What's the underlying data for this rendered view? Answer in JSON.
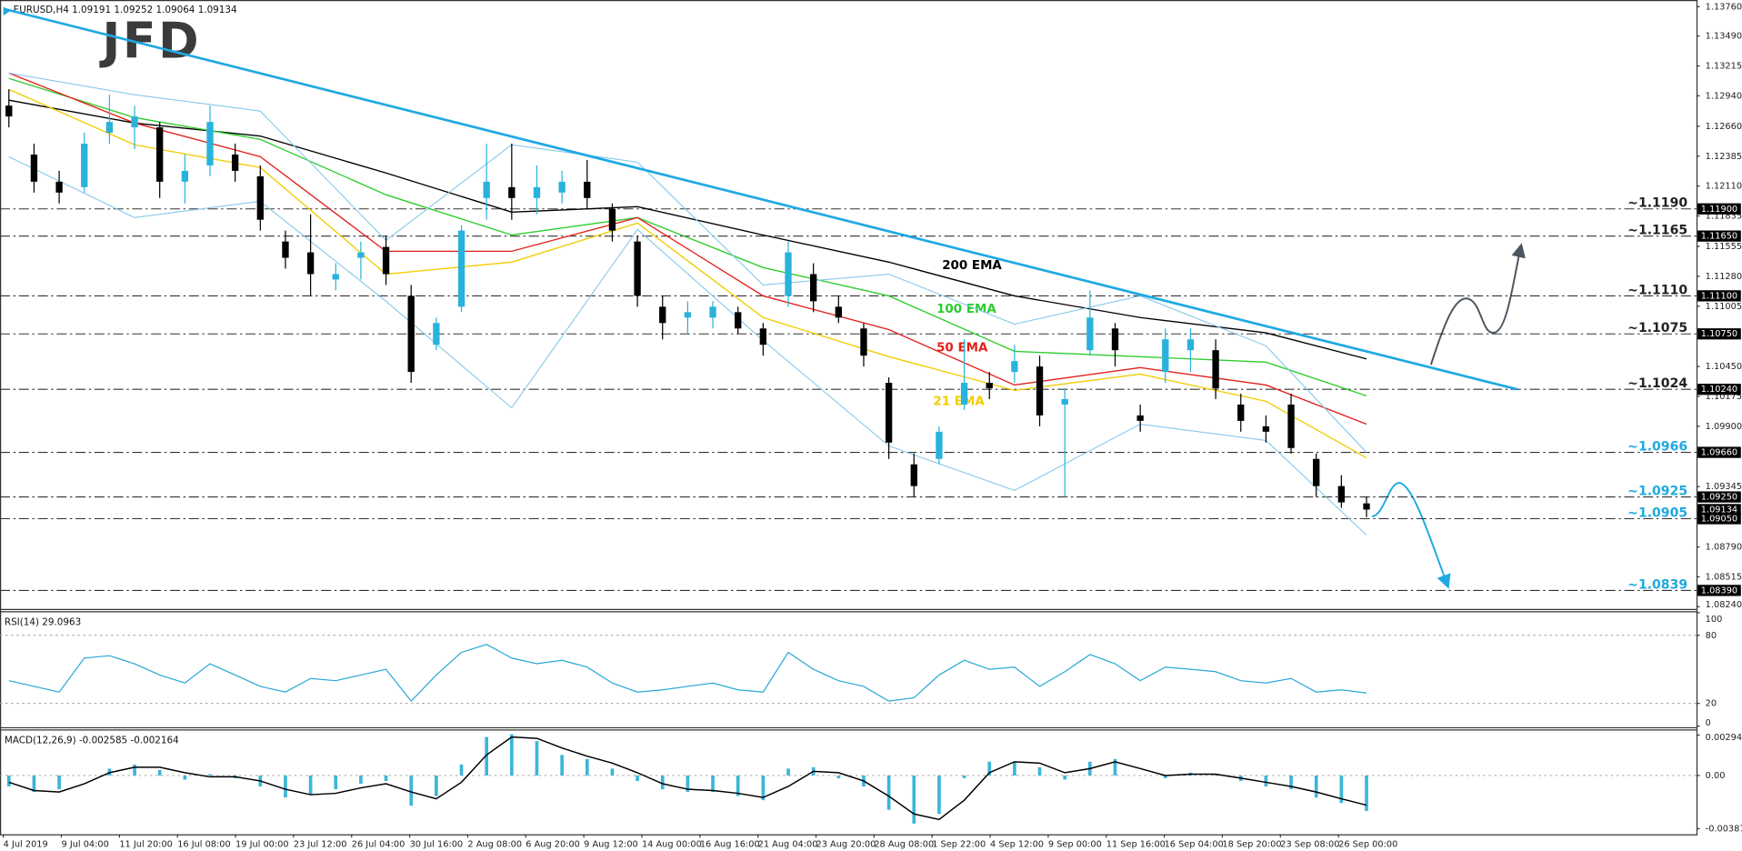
{
  "logo": "JFD",
  "chart_data": [
    {
      "type": "candlestick",
      "title": "EURUSD,H4  1.09191 1.09252 1.09064 1.09134",
      "up_color": "#29b2dc",
      "down_color": "#000000",
      "open": [
        1.1285,
        1.124,
        1.1215,
        1.121,
        1.126,
        1.1265,
        1.1265,
        1.1215,
        1.123,
        1.124,
        1.122,
        1.116,
        1.115,
        1.1125,
        1.1145,
        1.1155,
        1.111,
        1.1065,
        1.11,
        1.12,
        1.121,
        1.12,
        1.1205,
        1.1215,
        1.119,
        1.116,
        1.11,
        1.109,
        1.109,
        1.1095,
        1.108,
        1.111,
        1.113,
        1.11,
        1.108,
        1.103,
        1.0955,
        1.096,
        1.101,
        1.103,
        1.104,
        1.1045,
        1.101,
        1.106,
        1.108,
        1.1,
        1.104,
        1.106,
        1.106,
        1.101,
        1.099,
        1.101,
        1.096,
        1.0935,
        1.09191
      ],
      "high": [
        1.13,
        1.125,
        1.1225,
        1.126,
        1.1295,
        1.1285,
        1.127,
        1.124,
        1.1285,
        1.125,
        1.123,
        1.117,
        1.1185,
        1.114,
        1.116,
        1.1165,
        1.112,
        1.109,
        1.1175,
        1.125,
        1.125,
        1.123,
        1.1225,
        1.1235,
        1.1195,
        1.1165,
        1.111,
        1.1105,
        1.1105,
        1.11,
        1.1085,
        1.116,
        1.114,
        1.111,
        1.1085,
        1.1035,
        1.0965,
        1.099,
        1.107,
        1.104,
        1.1065,
        1.1055,
        1.1025,
        1.1115,
        1.1085,
        1.101,
        1.108,
        1.108,
        1.107,
        1.102,
        1.1,
        1.102,
        1.0965,
        1.0945,
        1.09252
      ],
      "low": [
        1.1265,
        1.1205,
        1.1195,
        1.1205,
        1.125,
        1.1245,
        1.12,
        1.1195,
        1.122,
        1.1215,
        1.117,
        1.1135,
        1.111,
        1.1115,
        1.1125,
        1.112,
        1.103,
        1.106,
        1.1095,
        1.118,
        1.118,
        1.1185,
        1.1195,
        1.119,
        1.116,
        1.11,
        1.107,
        1.1075,
        1.108,
        1.1075,
        1.1055,
        1.11,
        1.1095,
        1.1085,
        1.1045,
        1.096,
        1.0925,
        1.0955,
        1.1005,
        1.1015,
        1.103,
        1.099,
        1.0925,
        1.1055,
        1.1045,
        1.0985,
        1.103,
        1.104,
        1.1015,
        1.0985,
        1.0975,
        1.0965,
        1.0925,
        1.0915,
        1.09064
      ],
      "close": [
        1.1275,
        1.1215,
        1.1205,
        1.125,
        1.127,
        1.1275,
        1.1215,
        1.1225,
        1.127,
        1.1225,
        1.118,
        1.1145,
        1.113,
        1.113,
        1.115,
        1.113,
        1.104,
        1.1085,
        1.117,
        1.1215,
        1.12,
        1.121,
        1.1215,
        1.12,
        1.117,
        1.111,
        1.1085,
        1.1095,
        1.11,
        1.108,
        1.1065,
        1.115,
        1.1105,
        1.109,
        1.1055,
        1.0975,
        1.0935,
        1.0985,
        1.103,
        1.1025,
        1.105,
        1.1,
        1.1015,
        1.109,
        1.106,
        1.0995,
        1.107,
        1.107,
        1.1025,
        1.0995,
        1.0985,
        1.097,
        1.0935,
        1.092,
        1.09134
      ],
      "series": [
        {
          "name": "200 EMA",
          "color": "#000000",
          "x": [
            0,
            5,
            10,
            15,
            20,
            25,
            30,
            35,
            40,
            45,
            50,
            54
          ],
          "values": [
            1.129,
            1.1269,
            1.1257,
            1.1223,
            1.1187,
            1.1192,
            1.1166,
            1.1141,
            1.111,
            1.109,
            1.1076,
            1.1052
          ]
        },
        {
          "name": "100 EMA",
          "color": "#2ecc2e",
          "x": [
            0,
            5,
            10,
            15,
            20,
            25,
            30,
            35,
            40,
            45,
            50,
            54
          ],
          "values": [
            1.131,
            1.1274,
            1.1254,
            1.1203,
            1.1166,
            1.1182,
            1.1136,
            1.111,
            1.1059,
            1.1054,
            1.1049,
            1.1018
          ]
        },
        {
          "name": "50 EMA",
          "color": "#e3201b",
          "x": [
            0,
            5,
            10,
            15,
            20,
            25,
            30,
            35,
            40,
            45,
            50,
            54
          ],
          "values": [
            1.1315,
            1.1269,
            1.1238,
            1.1151,
            1.1151,
            1.1182,
            1.111,
            1.1079,
            1.1028,
            1.1044,
            1.1028,
            1.0992
          ]
        },
        {
          "name": "21 EMA",
          "color": "#f2cc00",
          "x": [
            0,
            5,
            10,
            15,
            20,
            25,
            30,
            35,
            40,
            45,
            50,
            54
          ],
          "values": [
            1.13,
            1.1249,
            1.1228,
            1.113,
            1.1141,
            1.1177,
            1.109,
            1.1054,
            1.1023,
            1.1038,
            1.1013,
            1.0961
          ]
        },
        {
          "color": "#86c9ea",
          "x": [
            0,
            5,
            10,
            15,
            20,
            25,
            30,
            35,
            40,
            45,
            50,
            54
          ],
          "values": [
            1.1315,
            1.1295,
            1.128,
            1.1161,
            1.1249,
            1.1233,
            1.112,
            1.113,
            1.1084,
            1.111,
            1.1064,
            1.0966
          ]
        },
        {
          "color": "#86c9ea",
          "x": [
            0,
            5,
            10,
            15,
            20,
            25,
            30,
            35,
            40,
            45,
            50,
            54
          ],
          "values": [
            1.1238,
            1.1182,
            1.1197,
            1.1105,
            1.1007,
            1.1171,
            1.1069,
            1.0972,
            1.0931,
            1.0992,
            1.0977,
            1.089
          ]
        }
      ],
      "trendline": {
        "color": "#1fa9e1",
        "x": [
          -0.2,
          60
        ],
        "values": [
          1.1374,
          1.1024
        ]
      },
      "levels": [
        {
          "value": 1.119,
          "label": "~1.1190",
          "tag": "1.11900",
          "color": "#222222"
        },
        {
          "value": 1.1165,
          "label": "~1.1165",
          "tag": "1.11650",
          "color": "#222222"
        },
        {
          "value": 1.111,
          "label": "~1.1110",
          "tag": "1.11100",
          "color": "#222222"
        },
        {
          "value": 1.1075,
          "label": "~1.1075",
          "tag": "1.10750",
          "color": "#222222"
        },
        {
          "value": 1.1024,
          "label": "~1.1024",
          "tag": "1.10240",
          "color": "#222222"
        },
        {
          "value": 1.0966,
          "label": "~1.0966",
          "tag": "1.09660",
          "color": "#1fa9e1"
        },
        {
          "value": 1.0925,
          "label": "~1.0925",
          "tag": "1.09250",
          "color": "#1fa9e1"
        },
        {
          "value": 1.0905,
          "label": "~1.0905",
          "tag": "1.09050",
          "color": "#1fa9e1"
        },
        {
          "value": 1.0839,
          "label": "~1.0839",
          "tag": "1.08390",
          "color": "#1fa9e1"
        }
      ],
      "price_tag": {
        "value": 1.09134,
        "label": "1.09134"
      },
      "ylim": [
        1.0824,
        1.1376
      ],
      "yticks": [
        {
          "value": 1.1376,
          "label": "1.13760"
        },
        {
          "value": 1.1349,
          "label": "1.13490"
        },
        {
          "value": 1.13215,
          "label": "1.13215"
        },
        {
          "value": 1.1294,
          "label": "1.12940"
        },
        {
          "value": 1.1266,
          "label": "1.12660"
        },
        {
          "value": 1.12385,
          "label": "1.12385"
        },
        {
          "value": 1.1211,
          "label": "1.12110"
        },
        {
          "value": 1.11835,
          "label": "1.11835"
        },
        {
          "value": 1.11555,
          "label": "1.11555"
        },
        {
          "value": 1.1128,
          "label": "1.11280"
        },
        {
          "value": 1.11005,
          "label": "1.11005"
        },
        {
          "value": 1.1045,
          "label": "1.10450"
        },
        {
          "value": 1.10175,
          "label": "1.10175"
        },
        {
          "value": 1.099,
          "label": "1.09900"
        },
        {
          "value": 1.09345,
          "label": "1.09345"
        },
        {
          "value": 1.0879,
          "label": "1.08790"
        },
        {
          "value": 1.08515,
          "label": "1.08515"
        },
        {
          "value": 1.0824,
          "label": "1.08240"
        }
      ],
      "grid": false
    },
    {
      "type": "line",
      "title": "RSI(14) 29.0963",
      "color": "#2aa7d6",
      "values": [
        40,
        35,
        30,
        60,
        62,
        55,
        45,
        38,
        55,
        45,
        35,
        30,
        42,
        40,
        45,
        50,
        22,
        45,
        65,
        72,
        60,
        55,
        58,
        52,
        38,
        30,
        32,
        35,
        38,
        32,
        30,
        65,
        50,
        40,
        35,
        22,
        25,
        45,
        58,
        50,
        52,
        35,
        48,
        63,
        55,
        40,
        52,
        50,
        48,
        40,
        38,
        42,
        30,
        32,
        29.0963
      ],
      "ylim": [
        0,
        100
      ],
      "yticks": [
        100,
        80,
        20,
        0
      ],
      "grid": true
    },
    {
      "type": "bar",
      "title": "MACD(12,26,9) -0.002585 -0.002164",
      "series": [
        {
          "kind": "bar",
          "color": "#3bb6d8",
          "values": [
            -0.0008,
            -0.0012,
            -0.001,
            0.0,
            0.0005,
            0.0008,
            0.0004,
            -0.0003,
            0.0001,
            -0.0002,
            -0.0008,
            -0.0016,
            -0.0014,
            -0.001,
            -0.0006,
            -0.0004,
            -0.0022,
            -0.0015,
            0.0008,
            0.0028,
            0.003,
            0.0025,
            0.0015,
            0.0012,
            0.0005,
            -0.0004,
            -0.001,
            -0.0012,
            -0.0012,
            -0.0015,
            -0.0018,
            0.0005,
            0.0006,
            -0.0002,
            -0.0008,
            -0.0025,
            -0.0035,
            -0.0028,
            -0.0002,
            0.001,
            0.001,
            0.0006,
            -0.0003,
            0.001,
            0.0012,
            0.0,
            -0.0002,
            0.0002,
            0.0001,
            -0.0004,
            -0.0008,
            -0.001,
            -0.0016,
            -0.002,
            -0.002585
          ]
        },
        {
          "kind": "line",
          "color": "#000000",
          "values": [
            -0.0005,
            -0.0011,
            -0.0012,
            -0.0006,
            0.0002,
            0.0006,
            0.0006,
            0.0002,
            -0.0001,
            -0.0001,
            -0.0004,
            -0.001,
            -0.0014,
            -0.0013,
            -0.0009,
            -0.0006,
            -0.0012,
            -0.0017,
            -0.0005,
            0.0015,
            0.0028,
            0.0027,
            0.002,
            0.0014,
            0.0009,
            0.0002,
            -0.0006,
            -0.001,
            -0.0011,
            -0.0013,
            -0.0016,
            -0.0008,
            0.0003,
            0.0002,
            -0.0004,
            -0.0015,
            -0.0028,
            -0.0032,
            -0.0018,
            0.0002,
            0.001,
            0.0009,
            0.0002,
            0.0005,
            0.001,
            0.0005,
            0.0,
            0.0001,
            0.0001,
            -0.0002,
            -0.0005,
            -0.0008,
            -0.0012,
            -0.0017,
            -0.002164
          ]
        }
      ],
      "ylim": [
        -0.003873,
        0.002945
      ],
      "yticks": [
        0.002945,
        {
          "value": 0,
          "label": "0.00"
        },
        -0.003873
      ],
      "grid": true,
      "x_tick_labels": [
        "4 Jul 2019",
        "9 Jul 04:00",
        "11 Jul 20:00",
        "16 Jul 08:00",
        "19 Jul 00:00",
        "23 Jul 12:00",
        "26 Jul 04:00",
        "30 Jul 16:00",
        "2 Aug 08:00",
        "6 Aug 20:00",
        "9 Aug 12:00",
        "14 Aug 00:00",
        "16 Aug 16:00",
        "21 Aug 04:00",
        "23 Aug 20:00",
        "28 Aug 08:00",
        "1 Sep 22:00",
        "4 Sep 12:00",
        "9 Sep 00:00",
        "11 Sep 16:00",
        "16 Sep 04:00",
        "18 Sep 20:00",
        "23 Sep 08:00",
        "26 Sep 00:00"
      ]
    }
  ]
}
